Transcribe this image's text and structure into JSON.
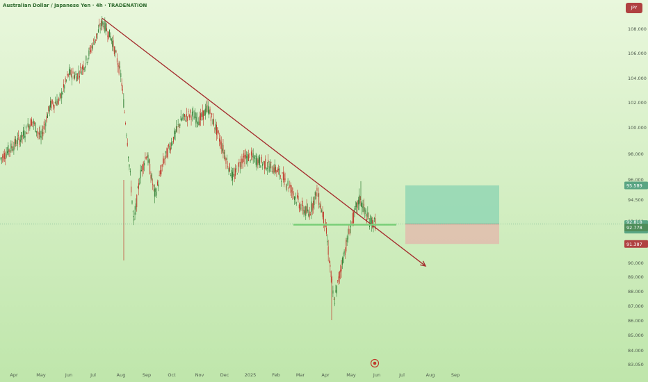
{
  "title": "Australian Dollar / Japanese Yen · 4h · TRADENATION",
  "currency_button": "JPY",
  "colors": {
    "background_top": "#e9f7dc",
    "background_bottom": "#bfe6ab",
    "trendline": "#a53030",
    "support": "#7ccf7a",
    "target_zone": "#92d6b4",
    "stop_zone": "#e0bfae",
    "candle_up": "#2e7d32",
    "candle_down": "#c0392b",
    "price_badge": "#5aa583",
    "current_badge": "#5aa583",
    "support_badge": "#4f8d5a",
    "stop_badge": "#b04141"
  },
  "price_badges": {
    "target": "95.589",
    "current": "92.818",
    "countdown": "03:20:21",
    "support": "92.778",
    "stop": "91.387"
  },
  "chart_data": {
    "type": "candlestick",
    "title": "Australian Dollar / Japanese Yen · 4h · TRADENATION",
    "y_ticks": [
      "108.000",
      "106.000",
      "104.000",
      "102.000",
      "100.000",
      "98.000",
      "96.000",
      "94.500",
      "93.000",
      "90.000",
      "89.000",
      "88.000",
      "87.000",
      "86.000",
      "85.000",
      "84.000",
      "83.050"
    ],
    "x_ticks": [
      "Apr",
      "May",
      "Jun",
      "Jul",
      "Aug",
      "Sep",
      "Oct",
      "Nov",
      "Dec",
      "2025",
      "Feb",
      "Mar",
      "Apr",
      "May",
      "Jun",
      "Jul",
      "Aug",
      "Sep"
    ],
    "price_path": [
      [
        "Apr",
        97.6
      ],
      [
        "Apr",
        99.4
      ],
      [
        "Apr",
        100.6
      ],
      [
        "May",
        99.2
      ],
      [
        "May",
        101.8
      ],
      [
        "May",
        102.2
      ],
      [
        "Jun",
        104.4
      ],
      [
        "Jun",
        104.2
      ],
      [
        "Jun",
        105.2
      ],
      [
        "Jul",
        106.8
      ],
      [
        "Jul",
        108.6
      ],
      [
        "Jul",
        107.2
      ],
      [
        "Aug",
        104.2
      ],
      [
        "Aug",
        99.0
      ],
      [
        "Aug",
        92.8
      ],
      [
        "Aug",
        96.4
      ],
      [
        "Sep",
        98.1
      ],
      [
        "Sep",
        94.8
      ],
      [
        "Sep",
        97.4
      ],
      [
        "Oct",
        98.9
      ],
      [
        "Oct",
        100.6
      ],
      [
        "Oct",
        101.1
      ],
      [
        "Nov",
        100.6
      ],
      [
        "Nov",
        101.6
      ],
      [
        "Nov",
        99.9
      ],
      [
        "Dec",
        98.0
      ],
      [
        "Dec",
        96.1
      ],
      [
        "Dec",
        97.6
      ],
      [
        "2025",
        97.8
      ],
      [
        "2025",
        97.3
      ],
      [
        "Feb",
        96.8
      ],
      [
        "Feb",
        95.7
      ],
      [
        "Mar",
        94.1
      ],
      [
        "Mar",
        93.5
      ],
      [
        "Mar",
        95.1
      ],
      [
        "Apr",
        92.8
      ],
      [
        "Apr",
        87.2
      ],
      [
        "Apr",
        90.2
      ],
      [
        "May",
        92.8
      ],
      [
        "May",
        94.6
      ],
      [
        "May",
        93.1
      ],
      [
        "Jun",
        92.8
      ]
    ],
    "annotations": {
      "trendline": {
        "from": [
          "Jul",
          108.9
        ],
        "to": [
          "Aug",
          89.8
        ]
      },
      "support_line": {
        "value": 92.778,
        "from": "Mar",
        "to": "Jun"
      },
      "long_position": {
        "entry": 92.818,
        "target": 95.589,
        "stop": 91.387,
        "from": "Jul",
        "to": "Aug"
      }
    },
    "current_price": 92.818
  }
}
